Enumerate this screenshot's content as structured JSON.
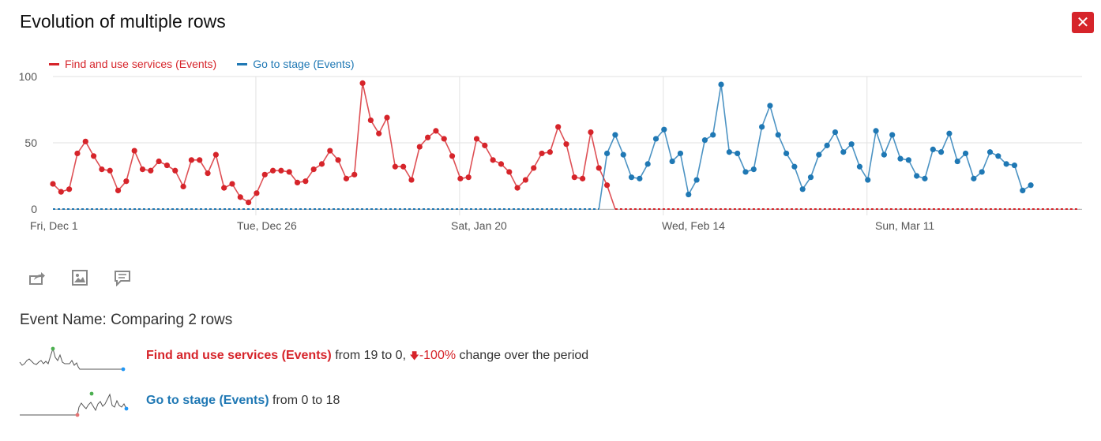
{
  "title": "Evolution of multiple rows",
  "close_label": "✕",
  "colors": {
    "series1": "#d6242a",
    "series2": "#1f78b4",
    "grid": "#dddddd",
    "axis": "#555555"
  },
  "chart_data": {
    "type": "line",
    "y_ticks": [
      "0",
      "50",
      "100"
    ],
    "ylim": [
      0,
      100
    ],
    "x_tick_labels": [
      "Fri, Dec 1",
      "Tue, Dec 26",
      "Sat, Jan 20",
      "Wed, Feb 14",
      "Sun, Mar 11"
    ],
    "x_tick_indices": [
      0,
      25,
      50,
      75,
      100
    ],
    "grid": true,
    "legend_position": "top-left",
    "series": [
      {
        "name": "Find and use services (Events)",
        "color": "#d6242a",
        "values": [
          19,
          13,
          15,
          42,
          51,
          40,
          30,
          29,
          14,
          21,
          44,
          30,
          29,
          36,
          33,
          29,
          17,
          37,
          37,
          27,
          41,
          16,
          19,
          9,
          5,
          12,
          26,
          29,
          29,
          28,
          20,
          21,
          30,
          34,
          44,
          37,
          23,
          26,
          95,
          67,
          57,
          69,
          32,
          32,
          22,
          47,
          54,
          59,
          53,
          40,
          23,
          24,
          53,
          48,
          37,
          34,
          28,
          16,
          22,
          31,
          42,
          43,
          62,
          49,
          24,
          23,
          58,
          31,
          18,
          0,
          0,
          0,
          0,
          0,
          0,
          0,
          0,
          0,
          0,
          0,
          0,
          0,
          0,
          0,
          0,
          0,
          0,
          0,
          0,
          0,
          0,
          0,
          0,
          0,
          0,
          0,
          0,
          0,
          0,
          0,
          0,
          0,
          0,
          0,
          0,
          0,
          0,
          0,
          0,
          0,
          0,
          0,
          0,
          0,
          0,
          0,
          0,
          0,
          0,
          0,
          0,
          0,
          0,
          0,
          0,
          0,
          0
        ]
      },
      {
        "name": "Go to stage (Events)",
        "color": "#1f78b4",
        "values": [
          0,
          0,
          0,
          0,
          0,
          0,
          0,
          0,
          0,
          0,
          0,
          0,
          0,
          0,
          0,
          0,
          0,
          0,
          0,
          0,
          0,
          0,
          0,
          0,
          0,
          0,
          0,
          0,
          0,
          0,
          0,
          0,
          0,
          0,
          0,
          0,
          0,
          0,
          0,
          0,
          0,
          0,
          0,
          0,
          0,
          0,
          0,
          0,
          0,
          0,
          0,
          0,
          0,
          0,
          0,
          0,
          0,
          0,
          0,
          0,
          0,
          0,
          0,
          0,
          0,
          0,
          0,
          0,
          42,
          56,
          41,
          24,
          23,
          34,
          53,
          60,
          36,
          42,
          11,
          22,
          52,
          56,
          94,
          43,
          42,
          28,
          30,
          62,
          78,
          56,
          42,
          32,
          15,
          24,
          41,
          48,
          58,
          43,
          49,
          32,
          22,
          59,
          41,
          56,
          38,
          37,
          25,
          23,
          45,
          43,
          57,
          36,
          42,
          23,
          28,
          43,
          40,
          34,
          33,
          14,
          18
        ]
      }
    ]
  },
  "tools": [
    {
      "icon": "share-icon",
      "label": "Export"
    },
    {
      "icon": "image-icon",
      "label": "Export as image"
    },
    {
      "icon": "annotation-icon",
      "label": "Annotations"
    }
  ],
  "summary": {
    "heading": "Event Name: Comparing 2 rows",
    "rows": [
      {
        "name": "Find and use services (Events)",
        "text_from": " from 19 to 0, ",
        "change": "-100%",
        "text_after": " change over the period"
      },
      {
        "name": "Go to stage (Events)",
        "text_from": " from 0 to 18"
      }
    ]
  }
}
